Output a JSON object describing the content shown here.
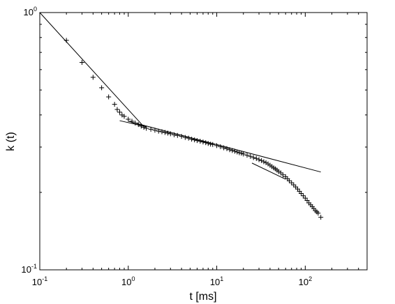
{
  "chart_data": {
    "type": "scatter",
    "title": "",
    "xlabel": "t [ms]",
    "ylabel": "k (t)",
    "x_scale": "log",
    "y_scale": "log",
    "xlim": [
      0.1,
      500
    ],
    "ylim": [
      0.1,
      1
    ],
    "grid": false,
    "x_ticks": [
      {
        "value": 0.1,
        "base": "10",
        "exp": "-1"
      },
      {
        "value": 1,
        "base": "10",
        "exp": "0"
      },
      {
        "value": 10,
        "base": "10",
        "exp": "1"
      },
      {
        "value": 100,
        "base": "10",
        "exp": "2"
      }
    ],
    "y_ticks": [
      {
        "value": 0.1,
        "base": "10",
        "exp": "-1"
      },
      {
        "value": 1,
        "base": "10",
        "exp": "0"
      }
    ],
    "series": [
      {
        "marker": "+",
        "color": "#000000",
        "points": [
          [
            0.2,
            0.78
          ],
          [
            0.3,
            0.64
          ],
          [
            0.4,
            0.56
          ],
          [
            0.5,
            0.51
          ],
          [
            0.6,
            0.47
          ],
          [
            0.7,
            0.44
          ],
          [
            0.75,
            0.42
          ],
          [
            0.8,
            0.41
          ],
          [
            0.85,
            0.4
          ],
          [
            0.9,
            0.395
          ],
          [
            1.0,
            0.385
          ],
          [
            1.1,
            0.378
          ],
          [
            1.2,
            0.372
          ],
          [
            1.3,
            0.367
          ],
          [
            1.4,
            0.362
          ],
          [
            1.5,
            0.358
          ],
          [
            1.6,
            0.355
          ],
          [
            1.8,
            0.352
          ],
          [
            2.0,
            0.349
          ],
          [
            2.2,
            0.346
          ],
          [
            2.4,
            0.344
          ],
          [
            2.6,
            0.342
          ],
          [
            2.8,
            0.34
          ],
          [
            3.0,
            0.338
          ],
          [
            3.3,
            0.335
          ],
          [
            3.6,
            0.333
          ],
          [
            4.0,
            0.33
          ],
          [
            4.4,
            0.327
          ],
          [
            4.8,
            0.325
          ],
          [
            5.2,
            0.322
          ],
          [
            5.6,
            0.32
          ],
          [
            6.0,
            0.318
          ],
          [
            6.5,
            0.316
          ],
          [
            7.0,
            0.314
          ],
          [
            7.5,
            0.312
          ],
          [
            8.0,
            0.31
          ],
          [
            8.5,
            0.308
          ],
          [
            9.0,
            0.307
          ],
          [
            10,
            0.304
          ],
          [
            11,
            0.301
          ],
          [
            12,
            0.298
          ],
          [
            13,
            0.296
          ],
          [
            14,
            0.293
          ],
          [
            15,
            0.291
          ],
          [
            16,
            0.289
          ],
          [
            17,
            0.287
          ],
          [
            18,
            0.285
          ],
          [
            19,
            0.284
          ],
          [
            20,
            0.282
          ],
          [
            22,
            0.279
          ],
          [
            24,
            0.276
          ],
          [
            26,
            0.273
          ],
          [
            28,
            0.271
          ],
          [
            30,
            0.268
          ],
          [
            32,
            0.266
          ],
          [
            34,
            0.263
          ],
          [
            36,
            0.261
          ],
          [
            38,
            0.258
          ],
          [
            40,
            0.255
          ],
          [
            42,
            0.252
          ],
          [
            44,
            0.249
          ],
          [
            46,
            0.247
          ],
          [
            48,
            0.244
          ],
          [
            50,
            0.241
          ],
          [
            53,
            0.238
          ],
          [
            56,
            0.234
          ],
          [
            60,
            0.23
          ],
          [
            63,
            0.226
          ],
          [
            66,
            0.222
          ],
          [
            70,
            0.218
          ],
          [
            74,
            0.214
          ],
          [
            78,
            0.21
          ],
          [
            82,
            0.206
          ],
          [
            86,
            0.202
          ],
          [
            90,
            0.198
          ],
          [
            95,
            0.194
          ],
          [
            100,
            0.19
          ],
          [
            105,
            0.186
          ],
          [
            110,
            0.182
          ],
          [
            115,
            0.179
          ],
          [
            120,
            0.176
          ],
          [
            125,
            0.173
          ],
          [
            130,
            0.17
          ],
          [
            135,
            0.168
          ],
          [
            140,
            0.166
          ],
          [
            150,
            0.16
          ]
        ]
      }
    ],
    "fit_lines": [
      {
        "x": [
          0.1,
          1.5
        ],
        "y": [
          1.0,
          0.36
        ]
      },
      {
        "x": [
          0.8,
          1.6
        ],
        "y": [
          0.38,
          0.36
        ]
      },
      {
        "x": [
          1.0,
          150
        ],
        "y": [
          0.378,
          0.24
        ]
      },
      {
        "x": [
          25,
          60
        ],
        "y": [
          0.26,
          0.225
        ]
      }
    ]
  }
}
